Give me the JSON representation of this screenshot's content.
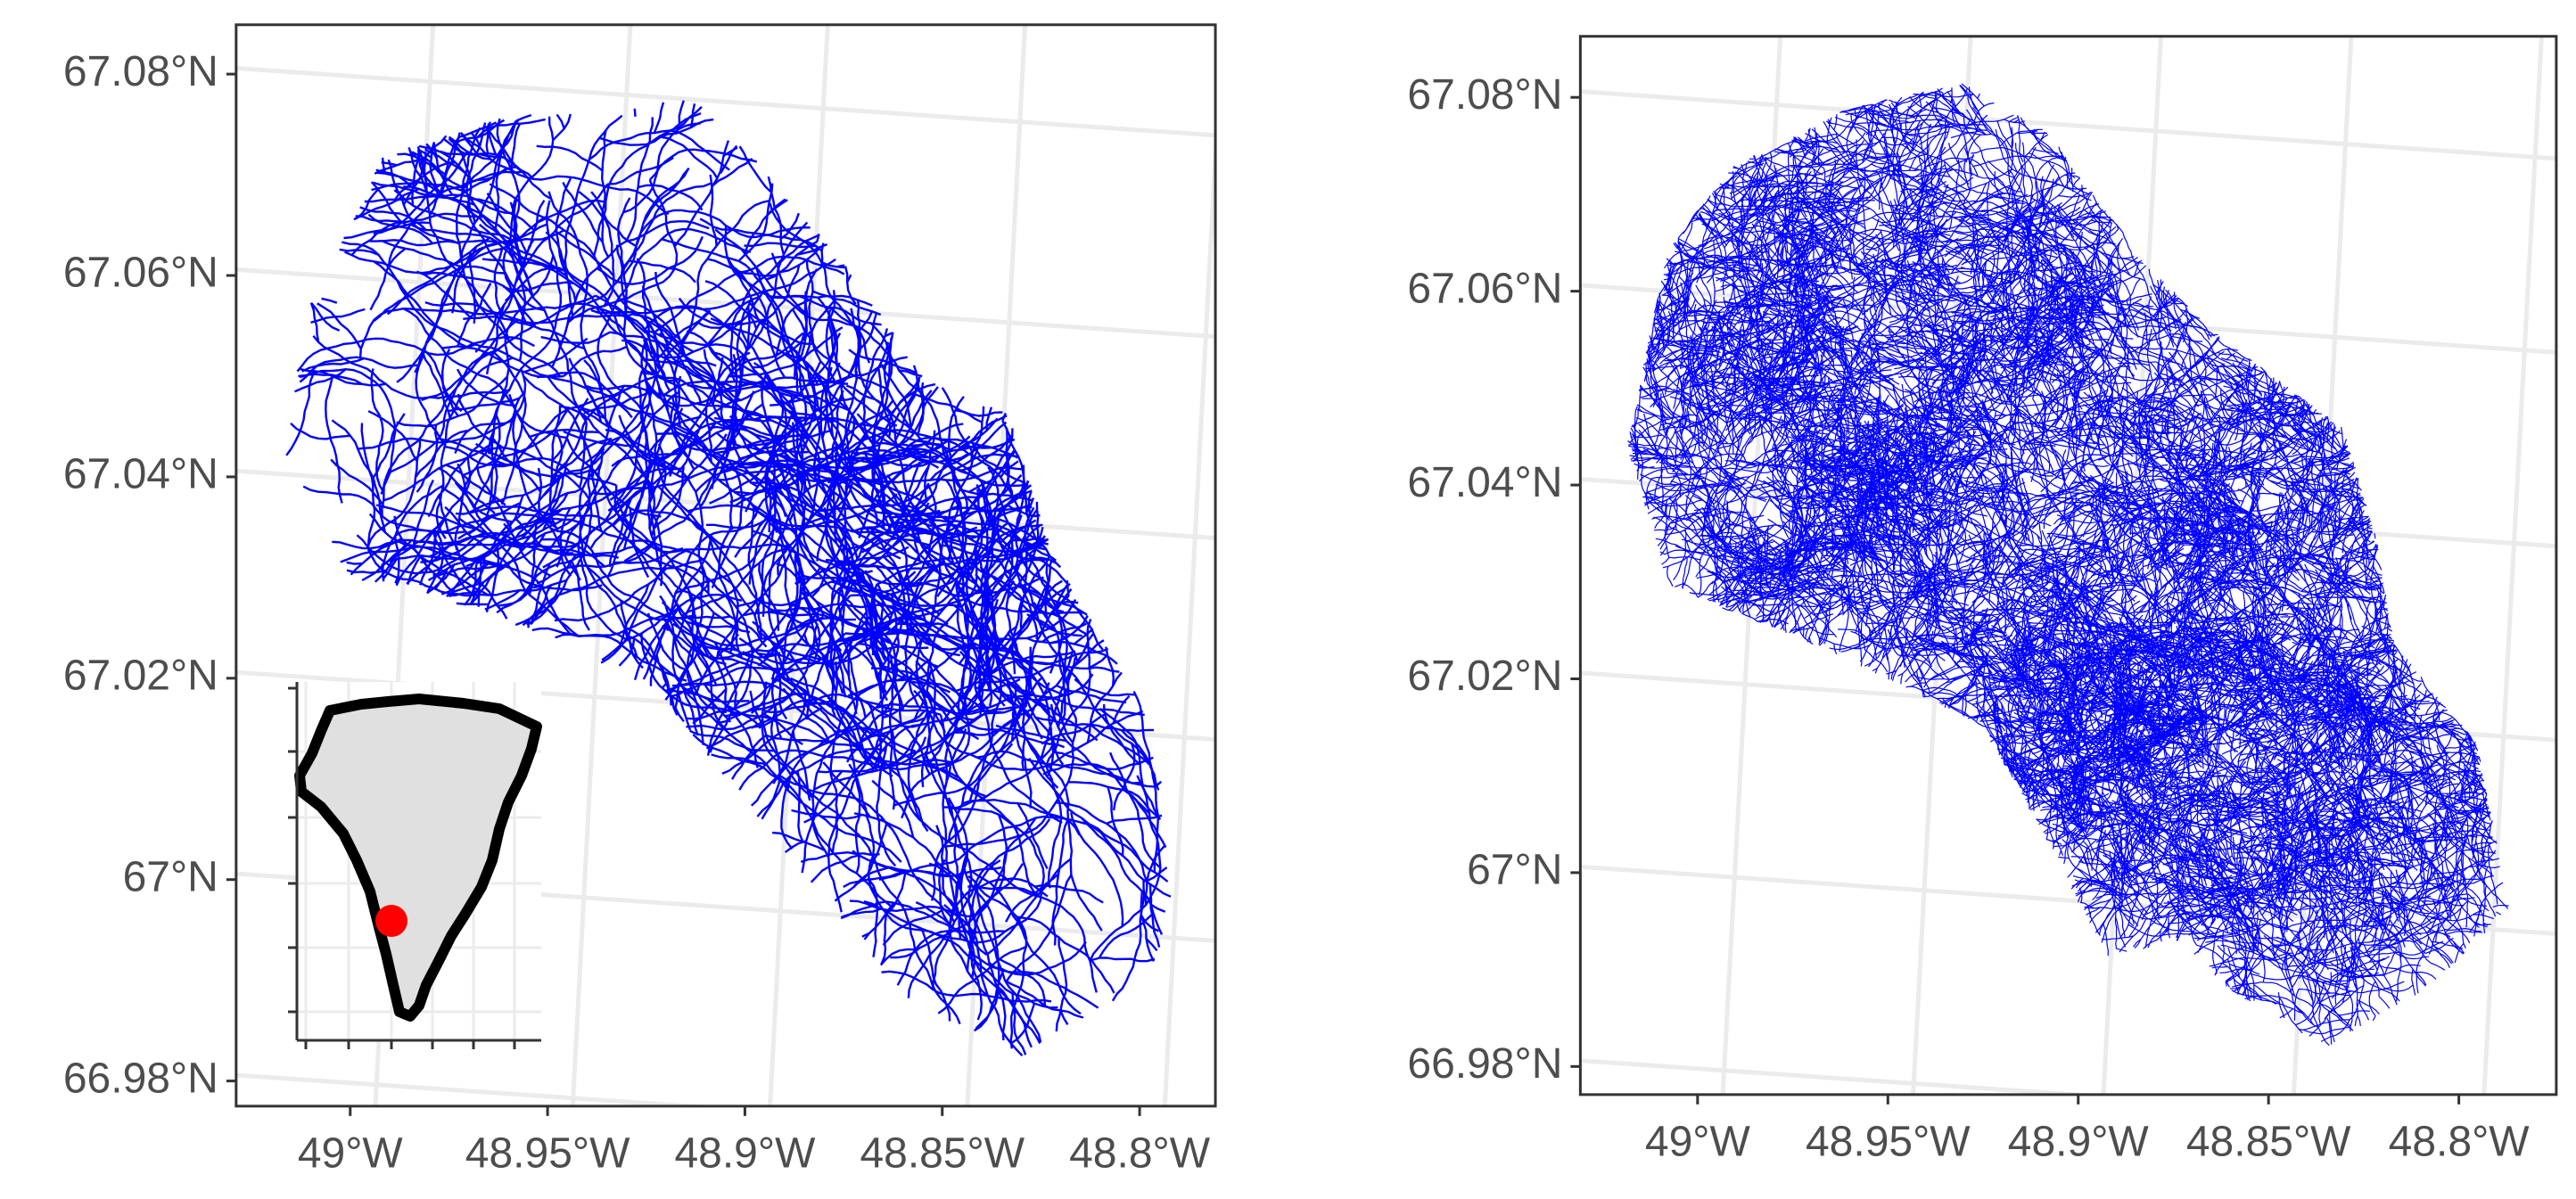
{
  "maps": [
    {
      "xlim": [
        -49.0289,
        -48.7808
      ],
      "ylim": [
        66.9775,
        67.0849
      ],
      "xticks": [
        {
          "value": -49,
          "label": "49°W"
        },
        {
          "value": -48.95,
          "label": "48.95°W"
        },
        {
          "value": -48.9,
          "label": "48.9°W"
        },
        {
          "value": -48.85,
          "label": "48.85°W"
        },
        {
          "value": -48.8,
          "label": "48.8°W"
        }
      ],
      "yticks": [
        {
          "value": 66.98,
          "label": "66.98°N"
        },
        {
          "value": 67,
          "label": "67°N"
        },
        {
          "value": 67.02,
          "label": "67.02°N"
        },
        {
          "value": 67.04,
          "label": "67.04°N"
        },
        {
          "value": 67.06,
          "label": "67.06°N"
        },
        {
          "value": 67.08,
          "label": "67.08°N"
        }
      ]
    },
    {
      "xlim": [
        -49.0308,
        -48.7744
      ],
      "ylim": [
        66.9771,
        67.0863
      ],
      "xticks": [
        {
          "value": -49,
          "label": "49°W"
        },
        {
          "value": -48.95,
          "label": "48.95°W"
        },
        {
          "value": -48.9,
          "label": "48.9°W"
        },
        {
          "value": -48.85,
          "label": "48.85°W"
        },
        {
          "value": -48.8,
          "label": "48.8°W"
        }
      ],
      "yticks": [
        {
          "value": 66.98,
          "label": "66.98°N"
        },
        {
          "value": 67,
          "label": "67°N"
        },
        {
          "value": 67.02,
          "label": "67.02°N"
        },
        {
          "value": 67.04,
          "label": "67.04°N"
        },
        {
          "value": 67.06,
          "label": "67.06°N"
        },
        {
          "value": 67.08,
          "label": "67.08°N"
        }
      ]
    }
  ]
}
